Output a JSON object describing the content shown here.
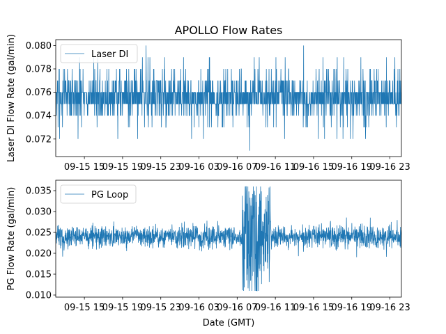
{
  "chart_data": [
    {
      "type": "line",
      "title": "APOLLO Flow Rates",
      "ylabel": "Laser DI Flow Rate (gal/min)",
      "xlabel": "",
      "legend": {
        "label": "Laser DI",
        "location": "top-left"
      },
      "series": [
        {
          "name": "Laser DI",
          "color": "#1f77b4",
          "baseline": 0.0755,
          "typical_range": [
            0.074,
            0.077
          ],
          "extremes": [
            0.071,
            0.08
          ]
        }
      ],
      "ylim": [
        0.0705,
        0.0805
      ],
      "yticks": [
        0.072,
        0.074,
        0.076,
        0.078,
        0.08
      ],
      "ytick_labels": [
        "0.072",
        "0.074",
        "0.076",
        "0.078",
        "0.080"
      ],
      "xlim_hours": [
        12.0,
        48.2
      ],
      "xticks_hours": [
        15,
        19,
        23,
        27,
        31,
        35,
        39,
        43,
        47
      ],
      "xtick_labels": [
        "09-15 15",
        "09-15 19",
        "09-15 23",
        "09-16 03",
        "09-16 07",
        "09-16 11",
        "09-16 15",
        "09-16 19",
        "09-16 23"
      ]
    },
    {
      "type": "line",
      "title": "",
      "ylabel": "PG Flow Rate (gal/min)",
      "xlabel": "Date (GMT)",
      "legend": {
        "label": "PG Loop",
        "location": "top-left"
      },
      "series": [
        {
          "name": "PG Loop",
          "color": "#1f77b4",
          "baseline": 0.024,
          "typical_range": [
            0.021,
            0.027
          ],
          "extremes": [
            0.011,
            0.036
          ],
          "disturbance_hours": [
            31.5,
            34.5
          ]
        }
      ],
      "ylim": [
        0.0095,
        0.0375
      ],
      "yticks": [
        0.01,
        0.015,
        0.02,
        0.025,
        0.03,
        0.035
      ],
      "ytick_labels": [
        "0.010",
        "0.015",
        "0.020",
        "0.025",
        "0.030",
        "0.035"
      ],
      "xlim_hours": [
        12.0,
        48.2
      ],
      "xticks_hours": [
        15,
        19,
        23,
        27,
        31,
        35,
        39,
        43,
        47
      ],
      "xtick_labels": [
        "09-15 15",
        "09-15 19",
        "09-15 23",
        "09-16 03",
        "09-16 07",
        "09-16 11",
        "09-16 15",
        "09-16 19",
        "09-16 23"
      ]
    }
  ]
}
